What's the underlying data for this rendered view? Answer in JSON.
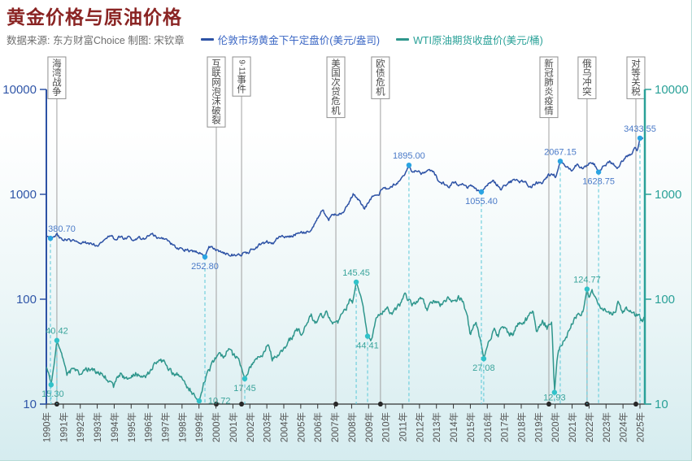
{
  "header": {
    "title": "黄金价格与原油价格",
    "source": "数据来源: 东方财富Choice   制图: 宋钦章"
  },
  "legend": [
    {
      "label": "伦敦市场黄金下午定盘价(美元/盎司)",
      "text_color": "#3a66c4",
      "line_color": "#2d52a5"
    },
    {
      "label": "WTI原油期货收盘价(美元/桶)",
      "text_color": "#2aa198",
      "line_color": "#2e968c"
    }
  ],
  "colors": {
    "title": "#8a2423",
    "subtitle": "#6e6e6e",
    "axis_left": "#2d52a5",
    "axis_left_text": "#3056a8",
    "axis_right": "#2aa198",
    "axis_right_text": "#2aa198",
    "x_axis": "#333333",
    "x_tick_text": "#555555",
    "event_border": "#8f8f8f",
    "event_text": "#4a4a4a",
    "event_line": "#a0a0a0",
    "event_dot": "#1f1f1f",
    "dashed_guide": "#5ac8d8"
  },
  "chart_data": {
    "type": "line",
    "title": "黄金价格与原油价格",
    "log_scale": true,
    "x_range": [
      1990,
      2025.3
    ],
    "x_tick_labels": [
      "1990年",
      "1991年",
      "1992年",
      "1993年",
      "1994年",
      "1995年",
      "1996年",
      "1997年",
      "1998年",
      "1999年",
      "2000年",
      "2001年",
      "2002年",
      "2003年",
      "2004年",
      "2005年",
      "2006年",
      "2007年",
      "2008年",
      "2009年",
      "2010年",
      "2011年",
      "2012年",
      "2013年",
      "2014年",
      "2015年",
      "2016年",
      "2017年",
      "2018年",
      "2019年",
      "2020年",
      "2021年",
      "2022年",
      "2023年",
      "2024年",
      "2025年"
    ],
    "y_ticks_left": [
      10,
      100,
      1000,
      10000
    ],
    "y_ticks_right": [
      10,
      100,
      1000,
      10000
    ],
    "y_range": [
      10,
      10000
    ],
    "legend_position": "top",
    "grid": false,
    "series": [
      {
        "name": "伦敦市场黄金下午定盘价(美元/盎司)",
        "axis": "left",
        "unit": "美元/盎司",
        "color": "#2d52a5",
        "marker_color": "#2aa4e2",
        "label_color": "#4a7ac8",
        "points": [
          [
            1990.0,
            398
          ],
          [
            1990.24,
            380.7
          ],
          [
            1990.62,
            408
          ],
          [
            1990.9,
            375
          ],
          [
            1991.4,
            362
          ],
          [
            1992.0,
            345
          ],
          [
            1992.6,
            338
          ],
          [
            1993.1,
            328
          ],
          [
            1993.5,
            390
          ],
          [
            1994.0,
            384
          ],
          [
            1994.6,
            386
          ],
          [
            1995.2,
            378
          ],
          [
            1995.8,
            386
          ],
          [
            1996.2,
            410
          ],
          [
            1996.9,
            378
          ],
          [
            1997.5,
            325
          ],
          [
            1998.1,
            294
          ],
          [
            1998.6,
            292
          ],
          [
            1999.1,
            284
          ],
          [
            1999.35,
            252.8
          ],
          [
            1999.6,
            322
          ],
          [
            2000.0,
            288
          ],
          [
            2000.6,
            276
          ],
          [
            2001.2,
            258
          ],
          [
            2001.8,
            276
          ],
          [
            2002.4,
            312
          ],
          [
            2003.0,
            360
          ],
          [
            2003.3,
            335
          ],
          [
            2003.9,
            410
          ],
          [
            2004.3,
            388
          ],
          [
            2004.9,
            428
          ],
          [
            2005.5,
            440
          ],
          [
            2005.9,
            545
          ],
          [
            2006.3,
            715
          ],
          [
            2006.65,
            572
          ],
          [
            2007.0,
            648
          ],
          [
            2007.5,
            672
          ],
          [
            2008.1,
            1000
          ],
          [
            2008.5,
            872
          ],
          [
            2008.75,
            718
          ],
          [
            2009.1,
            903
          ],
          [
            2009.6,
            1005
          ],
          [
            2009.85,
            1175
          ],
          [
            2010.1,
            1098
          ],
          [
            2010.6,
            1243
          ],
          [
            2010.9,
            1390
          ],
          [
            2011.15,
            1555
          ],
          [
            2011.38,
            1895
          ],
          [
            2011.55,
            1640
          ],
          [
            2011.8,
            1745
          ],
          [
            2012.1,
            1580
          ],
          [
            2012.55,
            1775
          ],
          [
            2012.8,
            1670
          ],
          [
            2013.1,
            1380
          ],
          [
            2013.4,
            1285
          ],
          [
            2013.75,
            1200
          ],
          [
            2014.0,
            1330
          ],
          [
            2014.5,
            1230
          ],
          [
            2014.8,
            1180
          ],
          [
            2015.1,
            1200
          ],
          [
            2015.4,
            1085
          ],
          [
            2015.65,
            1055.4
          ],
          [
            2016.0,
            1260
          ],
          [
            2016.35,
            1360
          ],
          [
            2016.8,
            1130
          ],
          [
            2017.2,
            1265
          ],
          [
            2017.55,
            1345
          ],
          [
            2017.9,
            1320
          ],
          [
            2018.2,
            1345
          ],
          [
            2018.55,
            1180
          ],
          [
            2018.9,
            1290
          ],
          [
            2019.25,
            1300
          ],
          [
            2019.6,
            1525
          ],
          [
            2019.9,
            1560
          ],
          [
            2020.05,
            1472
          ],
          [
            2020.3,
            2067.15
          ],
          [
            2020.7,
            1865
          ],
          [
            2021.0,
            1712
          ],
          [
            2021.3,
            1898
          ],
          [
            2021.6,
            1770
          ],
          [
            2021.9,
            1850
          ],
          [
            2022.05,
            2040
          ],
          [
            2022.3,
            1930
          ],
          [
            2022.56,
            1628.75
          ],
          [
            2022.8,
            1795
          ],
          [
            2023.0,
            1932
          ],
          [
            2023.25,
            2045
          ],
          [
            2023.5,
            1912
          ],
          [
            2023.7,
            1835
          ],
          [
            2023.95,
            2070
          ],
          [
            2024.2,
            2350
          ],
          [
            2024.45,
            2390
          ],
          [
            2024.7,
            2745
          ],
          [
            2024.85,
            2600
          ],
          [
            2025.0,
            3433.55
          ],
          [
            2025.1,
            3350
          ],
          [
            2025.2,
            3480
          ]
        ]
      },
      {
        "name": "WTI原油期货收盘价(美元/桶)",
        "axis": "right",
        "unit": "美元/桶",
        "color": "#2e968c",
        "marker_color": "#30c2c9",
        "label_color": "#3aa49b",
        "points": [
          [
            1990.0,
            22.5
          ],
          [
            1990.15,
            19
          ],
          [
            1990.28,
            15.3
          ],
          [
            1990.45,
            24
          ],
          [
            1990.62,
            40.42
          ],
          [
            1990.8,
            33
          ],
          [
            1991.0,
            25
          ],
          [
            1991.2,
            19.5
          ],
          [
            1991.6,
            21.5
          ],
          [
            1992.0,
            18.8
          ],
          [
            1992.5,
            22
          ],
          [
            1993.0,
            20.5
          ],
          [
            1993.5,
            18
          ],
          [
            1993.95,
            14.3
          ],
          [
            1994.35,
            19.5
          ],
          [
            1994.8,
            17.3
          ],
          [
            1995.3,
            19.5
          ],
          [
            1995.75,
            17.5
          ],
          [
            1996.3,
            22.5
          ],
          [
            1996.95,
            25.5
          ],
          [
            1997.35,
            20
          ],
          [
            1997.9,
            18.5
          ],
          [
            1998.3,
            15
          ],
          [
            1998.65,
            12.8
          ],
          [
            1999.01,
            10.72
          ],
          [
            1999.4,
            18
          ],
          [
            1999.9,
            26
          ],
          [
            2000.25,
            30
          ],
          [
            2000.5,
            29
          ],
          [
            2000.7,
            34.5
          ],
          [
            2001.0,
            28.5
          ],
          [
            2001.35,
            27.5
          ],
          [
            2001.7,
            17.45
          ],
          [
            2002.2,
            26
          ],
          [
            2002.75,
            29.5
          ],
          [
            2003.05,
            37
          ],
          [
            2003.3,
            27
          ],
          [
            2003.75,
            31
          ],
          [
            2004.15,
            37.5
          ],
          [
            2004.5,
            43
          ],
          [
            2004.75,
            54
          ],
          [
            2005.0,
            46
          ],
          [
            2005.4,
            59
          ],
          [
            2005.62,
            68
          ],
          [
            2005.9,
            59
          ],
          [
            2006.2,
            69
          ],
          [
            2006.55,
            75.5
          ],
          [
            2006.9,
            58
          ],
          [
            2007.05,
            55
          ],
          [
            2007.5,
            73
          ],
          [
            2007.9,
            96
          ],
          [
            2008.05,
            89
          ],
          [
            2008.27,
            145.45
          ],
          [
            2008.55,
            112
          ],
          [
            2008.94,
            44.41
          ],
          [
            2009.15,
            41
          ],
          [
            2009.45,
            69
          ],
          [
            2009.8,
            77
          ],
          [
            2010.1,
            81
          ],
          [
            2010.4,
            73
          ],
          [
            2010.9,
            92
          ],
          [
            2011.15,
            110
          ],
          [
            2011.4,
            98
          ],
          [
            2011.65,
            86
          ],
          [
            2011.95,
            102
          ],
          [
            2012.15,
            107
          ],
          [
            2012.45,
            79
          ],
          [
            2012.7,
            97
          ],
          [
            2013.05,
            93
          ],
          [
            2013.35,
            88
          ],
          [
            2013.65,
            107
          ],
          [
            2013.95,
            94
          ],
          [
            2014.25,
            102
          ],
          [
            2014.5,
            103
          ],
          [
            2014.75,
            75
          ],
          [
            2015.0,
            47
          ],
          [
            2015.35,
            60
          ],
          [
            2015.6,
            40
          ],
          [
            2015.79,
            27.08
          ],
          [
            2016.1,
            40
          ],
          [
            2016.4,
            49
          ],
          [
            2016.65,
            44.5
          ],
          [
            2016.9,
            54
          ],
          [
            2017.2,
            48
          ],
          [
            2017.5,
            46
          ],
          [
            2017.9,
            61
          ],
          [
            2018.25,
            64
          ],
          [
            2018.5,
            68
          ],
          [
            2018.72,
            76
          ],
          [
            2018.9,
            45
          ],
          [
            2019.25,
            64
          ],
          [
            2019.55,
            53
          ],
          [
            2019.8,
            62
          ],
          [
            2019.96,
            12.93
          ],
          [
            2020.1,
            25
          ],
          [
            2020.2,
            32
          ],
          [
            2020.5,
            41
          ],
          [
            2020.8,
            48
          ],
          [
            2021.1,
            63
          ],
          [
            2021.4,
            72
          ],
          [
            2021.65,
            80
          ],
          [
            2021.88,
            124.77
          ],
          [
            2022.0,
            102
          ],
          [
            2022.15,
            118
          ],
          [
            2022.35,
            110
          ],
          [
            2022.55,
            88
          ],
          [
            2022.8,
            80
          ],
          [
            2023.05,
            76
          ],
          [
            2023.3,
            70
          ],
          [
            2023.55,
            80
          ],
          [
            2023.75,
            93
          ],
          [
            2023.95,
            72
          ],
          [
            2024.2,
            83
          ],
          [
            2024.45,
            79
          ],
          [
            2024.7,
            70
          ],
          [
            2024.95,
            72
          ],
          [
            2025.05,
            66
          ],
          [
            2025.15,
            62
          ],
          [
            2025.25,
            67
          ]
        ]
      }
    ],
    "annotations": [
      {
        "series": 0,
        "x": 1990.24,
        "y": 380.7,
        "label": "380.70",
        "pos": "above",
        "dx": 14
      },
      {
        "series": 0,
        "x": 1999.35,
        "y": 252.8,
        "label": "252.80",
        "pos": "below"
      },
      {
        "series": 0,
        "x": 2011.38,
        "y": 1895.0,
        "label": "1895.00",
        "pos": "above"
      },
      {
        "series": 0,
        "x": 2015.65,
        "y": 1055.4,
        "label": "1055.40",
        "pos": "below"
      },
      {
        "series": 0,
        "x": 2020.3,
        "y": 2067.15,
        "label": "2067.15",
        "pos": "above"
      },
      {
        "series": 0,
        "x": 2022.56,
        "y": 1628.75,
        "label": "1628.75",
        "pos": "below"
      },
      {
        "series": 0,
        "x": 2025.0,
        "y": 3433.55,
        "label": "3433.55",
        "pos": "above"
      },
      {
        "series": 1,
        "x": 1990.28,
        "y": 15.3,
        "label": "15.30",
        "pos": "below",
        "dx": 2
      },
      {
        "series": 1,
        "x": 1990.62,
        "y": 40.42,
        "label": "40.42",
        "pos": "above"
      },
      {
        "series": 1,
        "x": 1999.01,
        "y": 10.72,
        "label": "10.72",
        "pos": "right"
      },
      {
        "series": 1,
        "x": 2001.7,
        "y": 17.45,
        "label": "17.45",
        "pos": "below"
      },
      {
        "series": 1,
        "x": 2008.27,
        "y": 145.45,
        "label": "145.45",
        "pos": "above"
      },
      {
        "series": 1,
        "x": 2008.94,
        "y": 44.41,
        "label": "44.41",
        "pos": "below"
      },
      {
        "series": 1,
        "x": 2015.79,
        "y": 27.08,
        "label": "27.08",
        "pos": "below"
      },
      {
        "series": 1,
        "x": 2019.96,
        "y": 12.93,
        "label": "12.93",
        "pos": "below",
        "dy": 10
      },
      {
        "series": 1,
        "x": 2021.88,
        "y": 124.77,
        "label": "124.77",
        "pos": "above"
      }
    ],
    "events": [
      {
        "label": "海湾战争",
        "chars": [
          "海",
          "湾",
          "战",
          "争"
        ],
        "x": 1990.62
      },
      {
        "label": "互联网泡沫破裂",
        "chars": [
          "互",
          "联",
          "网",
          "泡",
          "沫",
          "破",
          "裂"
        ],
        "x": 2000.02
      },
      {
        "label": "9·11事件",
        "chars": [
          "9·11",
          "事",
          "件"
        ],
        "x": 2001.51
      },
      {
        "label": "美国次贷危机",
        "chars": [
          "美",
          "国",
          "次",
          "贷",
          "危",
          "机"
        ],
        "x": 2007.07
      },
      {
        "label": "欧债危机",
        "chars": [
          "欧",
          "债",
          "危",
          "机"
        ],
        "x": 2009.7
      },
      {
        "label": "新冠肺炎疫情",
        "chars": [
          "新",
          "冠",
          "肺",
          "炎",
          "疫",
          "情"
        ],
        "x": 2019.63
      },
      {
        "label": "俄乌冲突",
        "chars": [
          "俄",
          "乌",
          "冲",
          "突"
        ],
        "x": 2021.88
      },
      {
        "label": "对等关税",
        "chars": [
          "对",
          "等",
          "关",
          "税"
        ],
        "x": 2024.76
      }
    ]
  }
}
